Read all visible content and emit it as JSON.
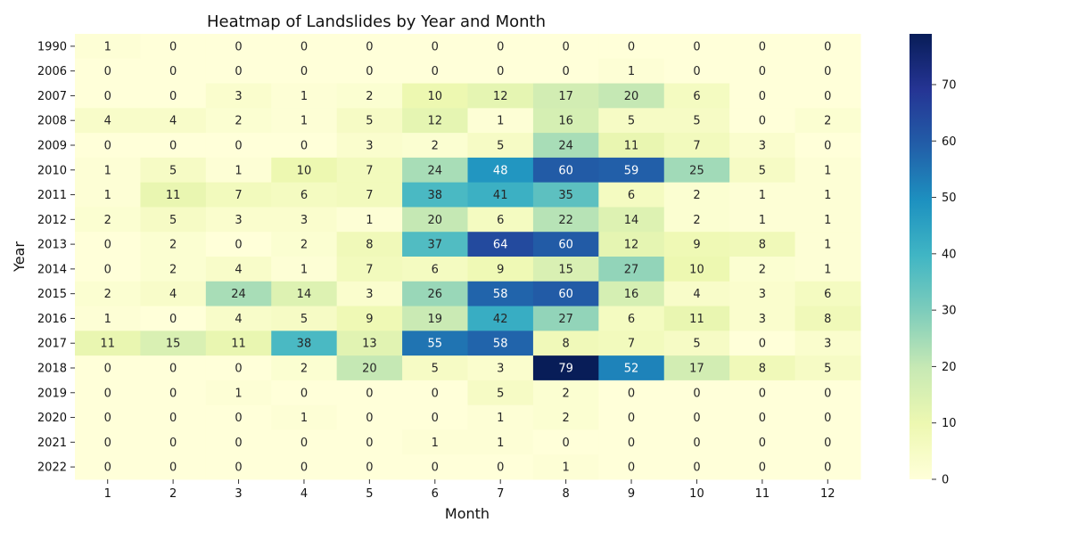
{
  "chart_data": {
    "type": "heatmap",
    "title": "Heatmap of Landslides by Year and Month",
    "xlabel": "Month",
    "ylabel": "Year",
    "x_categories": [
      "1",
      "2",
      "3",
      "4",
      "5",
      "6",
      "7",
      "8",
      "9",
      "10",
      "11",
      "12"
    ],
    "y_categories": [
      "1990",
      "2006",
      "2007",
      "2008",
      "2009",
      "2010",
      "2011",
      "2012",
      "2013",
      "2014",
      "2015",
      "2016",
      "2017",
      "2018",
      "2019",
      "2020",
      "2021",
      "2022"
    ],
    "values": [
      [
        1,
        0,
        0,
        0,
        0,
        0,
        0,
        0,
        0,
        0,
        0,
        0
      ],
      [
        0,
        0,
        0,
        0,
        0,
        0,
        0,
        0,
        1,
        0,
        0,
        0
      ],
      [
        0,
        0,
        3,
        1,
        2,
        10,
        12,
        17,
        20,
        6,
        0,
        0
      ],
      [
        4,
        4,
        2,
        1,
        5,
        12,
        1,
        16,
        5,
        5,
        0,
        2
      ],
      [
        0,
        0,
        0,
        0,
        3,
        2,
        5,
        24,
        11,
        7,
        3,
        0
      ],
      [
        1,
        5,
        1,
        10,
        7,
        24,
        48,
        60,
        59,
        25,
        5,
        1
      ],
      [
        1,
        11,
        7,
        6,
        7,
        38,
        41,
        35,
        6,
        2,
        1,
        1
      ],
      [
        2,
        5,
        3,
        3,
        1,
        20,
        6,
        22,
        14,
        2,
        1,
        1
      ],
      [
        0,
        2,
        0,
        2,
        8,
        37,
        64,
        60,
        12,
        9,
        8,
        1
      ],
      [
        0,
        2,
        4,
        1,
        7,
        6,
        9,
        15,
        27,
        10,
        2,
        1
      ],
      [
        2,
        4,
        24,
        14,
        3,
        26,
        58,
        60,
        16,
        4,
        3,
        6
      ],
      [
        1,
        0,
        4,
        5,
        9,
        19,
        42,
        27,
        6,
        11,
        3,
        8
      ],
      [
        11,
        15,
        11,
        38,
        13,
        55,
        58,
        8,
        7,
        5,
        0,
        3
      ],
      [
        0,
        0,
        0,
        2,
        20,
        5,
        3,
        79,
        52,
        17,
        8,
        5
      ],
      [
        0,
        0,
        1,
        0,
        0,
        0,
        5,
        2,
        0,
        0,
        0,
        0
      ],
      [
        0,
        0,
        0,
        1,
        0,
        0,
        1,
        2,
        0,
        0,
        0,
        0
      ],
      [
        0,
        0,
        0,
        0,
        0,
        1,
        1,
        0,
        0,
        0,
        0,
        0
      ],
      [
        0,
        0,
        0,
        0,
        0,
        0,
        0,
        1,
        0,
        0,
        0,
        0
      ]
    ],
    "colormap": "YlGnBu",
    "vmin": 0,
    "vmax": 79,
    "colorbar_ticks": [
      0,
      10,
      20,
      30,
      40,
      50,
      60,
      70
    ],
    "annotated": true,
    "grid": false
  }
}
